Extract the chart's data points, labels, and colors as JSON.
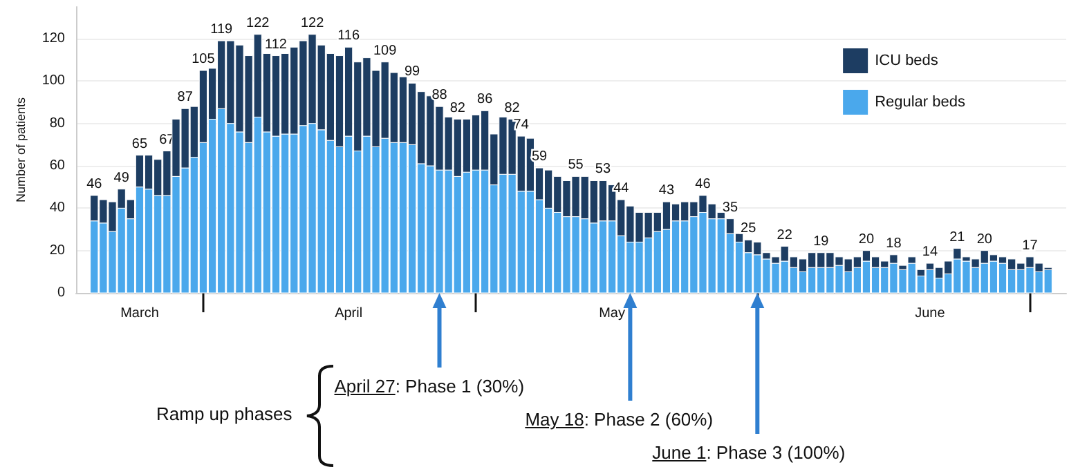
{
  "chart_data": {
    "type": "bar",
    "stacked": true,
    "ylabel": "Number of patients",
    "x": [
      "--03-20",
      "--03-21",
      "--03-22",
      "--03-23",
      "--03-24",
      "--03-25",
      "--03-26",
      "--03-27",
      "--03-28",
      "--03-29",
      "--03-30",
      "--03-31",
      "--04-01",
      "--04-02",
      "--04-03",
      "--04-04",
      "--04-05",
      "--04-06",
      "--04-07",
      "--04-08",
      "--04-09",
      "--04-10",
      "--04-11",
      "--04-12",
      "--04-13",
      "--04-14",
      "--04-15",
      "--04-16",
      "--04-17",
      "--04-18",
      "--04-19",
      "--04-20",
      "--04-21",
      "--04-22",
      "--04-23",
      "--04-24",
      "--04-25",
      "--04-26",
      "--04-27",
      "--04-28",
      "--04-29",
      "--04-30",
      "--05-01",
      "--05-02",
      "--05-03",
      "--05-04",
      "--05-05",
      "--05-06",
      "--05-07",
      "--05-08",
      "--05-09",
      "--05-10",
      "--05-11",
      "--05-12",
      "--05-13",
      "--05-14",
      "--05-15",
      "--05-16",
      "--05-17",
      "--05-18",
      "--05-19",
      "--05-20",
      "--05-21",
      "--05-22",
      "--05-23",
      "--05-24",
      "--05-25",
      "--05-26",
      "--05-27",
      "--05-28",
      "--05-29",
      "--05-30",
      "--05-31",
      "--06-01",
      "--06-02",
      "--06-03",
      "--06-04",
      "--06-05",
      "--06-06",
      "--06-07",
      "--06-08",
      "--06-09",
      "--06-10",
      "--06-11",
      "--06-12",
      "--06-13",
      "--06-14",
      "--06-15",
      "--06-16",
      "--06-17",
      "--06-18",
      "--06-19",
      "--06-20",
      "--06-21",
      "--06-22",
      "--06-23",
      "--06-24",
      "--06-25",
      "--06-26",
      "--06-27",
      "--06-28",
      "--06-29",
      "--06-30",
      "--07-01",
      "--07-02",
      "--07-03"
    ],
    "series": [
      {
        "name": "Regular beds",
        "color": "#4aa8ec",
        "values": [
          34,
          33,
          29,
          40,
          35,
          50,
          49,
          46,
          46,
          55,
          59,
          64,
          71,
          82,
          87,
          80,
          76,
          71,
          83,
          76,
          74,
          75,
          75,
          79,
          80,
          77,
          72,
          69,
          74,
          67,
          74,
          69,
          73,
          71,
          71,
          70,
          61,
          60,
          58,
          58,
          55,
          57,
          58,
          58,
          51,
          56,
          56,
          48,
          48,
          44,
          40,
          38,
          36,
          36,
          35,
          33,
          34,
          34,
          27,
          24,
          24,
          26,
          29,
          30,
          34,
          34,
          36,
          38,
          35,
          35,
          28,
          24,
          19,
          18,
          16,
          14,
          15,
          12,
          10,
          12,
          12,
          12,
          13,
          10,
          12,
          15,
          12,
          12,
          14,
          11,
          14,
          8,
          11,
          7,
          9,
          16,
          15,
          12,
          14,
          15,
          14,
          11,
          11,
          12,
          10,
          11
        ]
      },
      {
        "name": "ICU beds",
        "color": "#1d3d62",
        "values": [
          12,
          11,
          14,
          9,
          9,
          15,
          16,
          17,
          21,
          27,
          28,
          24,
          34,
          24,
          32,
          39,
          41,
          41,
          39,
          37,
          38,
          38,
          41,
          40,
          42,
          40,
          41,
          43,
          42,
          42,
          37,
          36,
          36,
          33,
          31,
          29,
          34,
          33,
          30,
          25,
          27,
          25,
          26,
          28,
          24,
          27,
          26,
          26,
          25,
          15,
          18,
          17,
          17,
          19,
          20,
          20,
          19,
          17,
          17,
          17,
          14,
          12,
          9,
          13,
          8,
          9,
          7,
          8,
          7,
          3,
          7,
          4,
          6,
          6,
          3,
          3,
          7,
          5,
          6,
          7,
          7,
          7,
          4,
          6,
          5,
          5,
          5,
          3,
          4,
          2,
          3,
          3,
          3,
          5,
          6,
          5,
          2,
          4,
          6,
          3,
          3,
          5,
          3,
          5,
          4,
          1
        ]
      }
    ],
    "totals": [
      "46",
      null,
      null,
      "49",
      null,
      "65",
      null,
      null,
      "67",
      null,
      "87",
      null,
      "105",
      null,
      "119",
      null,
      null,
      null,
      "122",
      null,
      "112",
      null,
      null,
      null,
      "122",
      null,
      null,
      null,
      "116",
      null,
      null,
      null,
      "109",
      null,
      null,
      "99",
      null,
      null,
      "88",
      null,
      "82",
      null,
      null,
      "86",
      null,
      null,
      "82",
      "74",
      null,
      "59",
      null,
      null,
      null,
      "55",
      null,
      null,
      "53",
      null,
      "44",
      null,
      null,
      null,
      null,
      "43",
      null,
      null,
      null,
      "46",
      null,
      null,
      "35",
      null,
      "25",
      null,
      null,
      null,
      "22",
      null,
      null,
      null,
      "19",
      null,
      null,
      null,
      null,
      "20",
      null,
      null,
      "18",
      null,
      null,
      null,
      "14",
      null,
      null,
      "21",
      null,
      null,
      "20",
      null,
      null,
      null,
      null,
      "17",
      null,
      null
    ],
    "xlim": [
      "--03-18",
      "--07-05"
    ],
    "xticks": [
      {
        "value": "--03-25",
        "label": "March"
      },
      {
        "value": "--04-01",
        "label": null
      },
      {
        "value": "--04-17",
        "label": "April"
      },
      {
        "value": "--05-01",
        "label": null
      },
      {
        "value": "--05-16",
        "label": "May"
      },
      {
        "value": "--06-01",
        "label": null
      },
      {
        "value": "--06-20",
        "label": "June"
      },
      {
        "value": "--07-01",
        "label": null
      }
    ],
    "ylim": [
      0,
      135
    ],
    "yticks": [
      0,
      20,
      40,
      60,
      80,
      100,
      120
    ],
    "grid": "y",
    "legend": "top right",
    "annotations": [
      "Ramp up phases",
      {
        "text": "April 27: Phase 1 (30%)",
        "x": "--04-27",
        "y": 0
      },
      {
        "text": "May 18: Phase 2 (60%)",
        "x": "--05-18",
        "y": 0
      },
      {
        "text": "June 1: Phase 3 (100%)",
        "x": "--06-01",
        "y": 0
      }
    ]
  }
}
